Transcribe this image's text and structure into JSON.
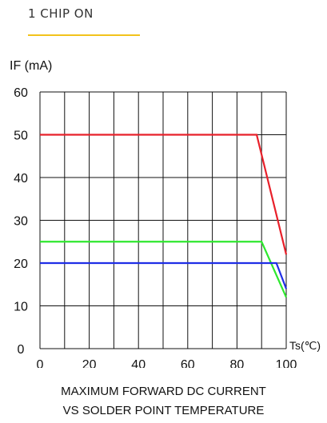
{
  "header": {
    "title": "1 CHIP ON",
    "accent": "#f2c31c"
  },
  "chart_data": {
    "type": "line",
    "ylabel": "IF (mA)",
    "xlabel": "Ts(℃)",
    "xlim": [
      0,
      100
    ],
    "ylim": [
      0,
      60
    ],
    "xticks": [
      0,
      20,
      40,
      60,
      80,
      100
    ],
    "yticks": [
      0,
      10,
      20,
      30,
      40,
      50,
      60
    ],
    "grid": true,
    "series": [
      {
        "color": "#e8202a",
        "x": [
          0,
          88,
          100
        ],
        "y": [
          50,
          50,
          22
        ]
      },
      {
        "color": "#2ee82e",
        "x": [
          0,
          90,
          100
        ],
        "y": [
          25,
          25,
          12
        ]
      },
      {
        "color": "#1f2ee6",
        "x": [
          0,
          96,
          100
        ],
        "y": [
          20,
          20,
          14
        ]
      }
    ],
    "caption": [
      "MAXIMUM FORWARD DC CURRENT",
      "VS SOLDER POINT TEMPERATURE"
    ]
  }
}
